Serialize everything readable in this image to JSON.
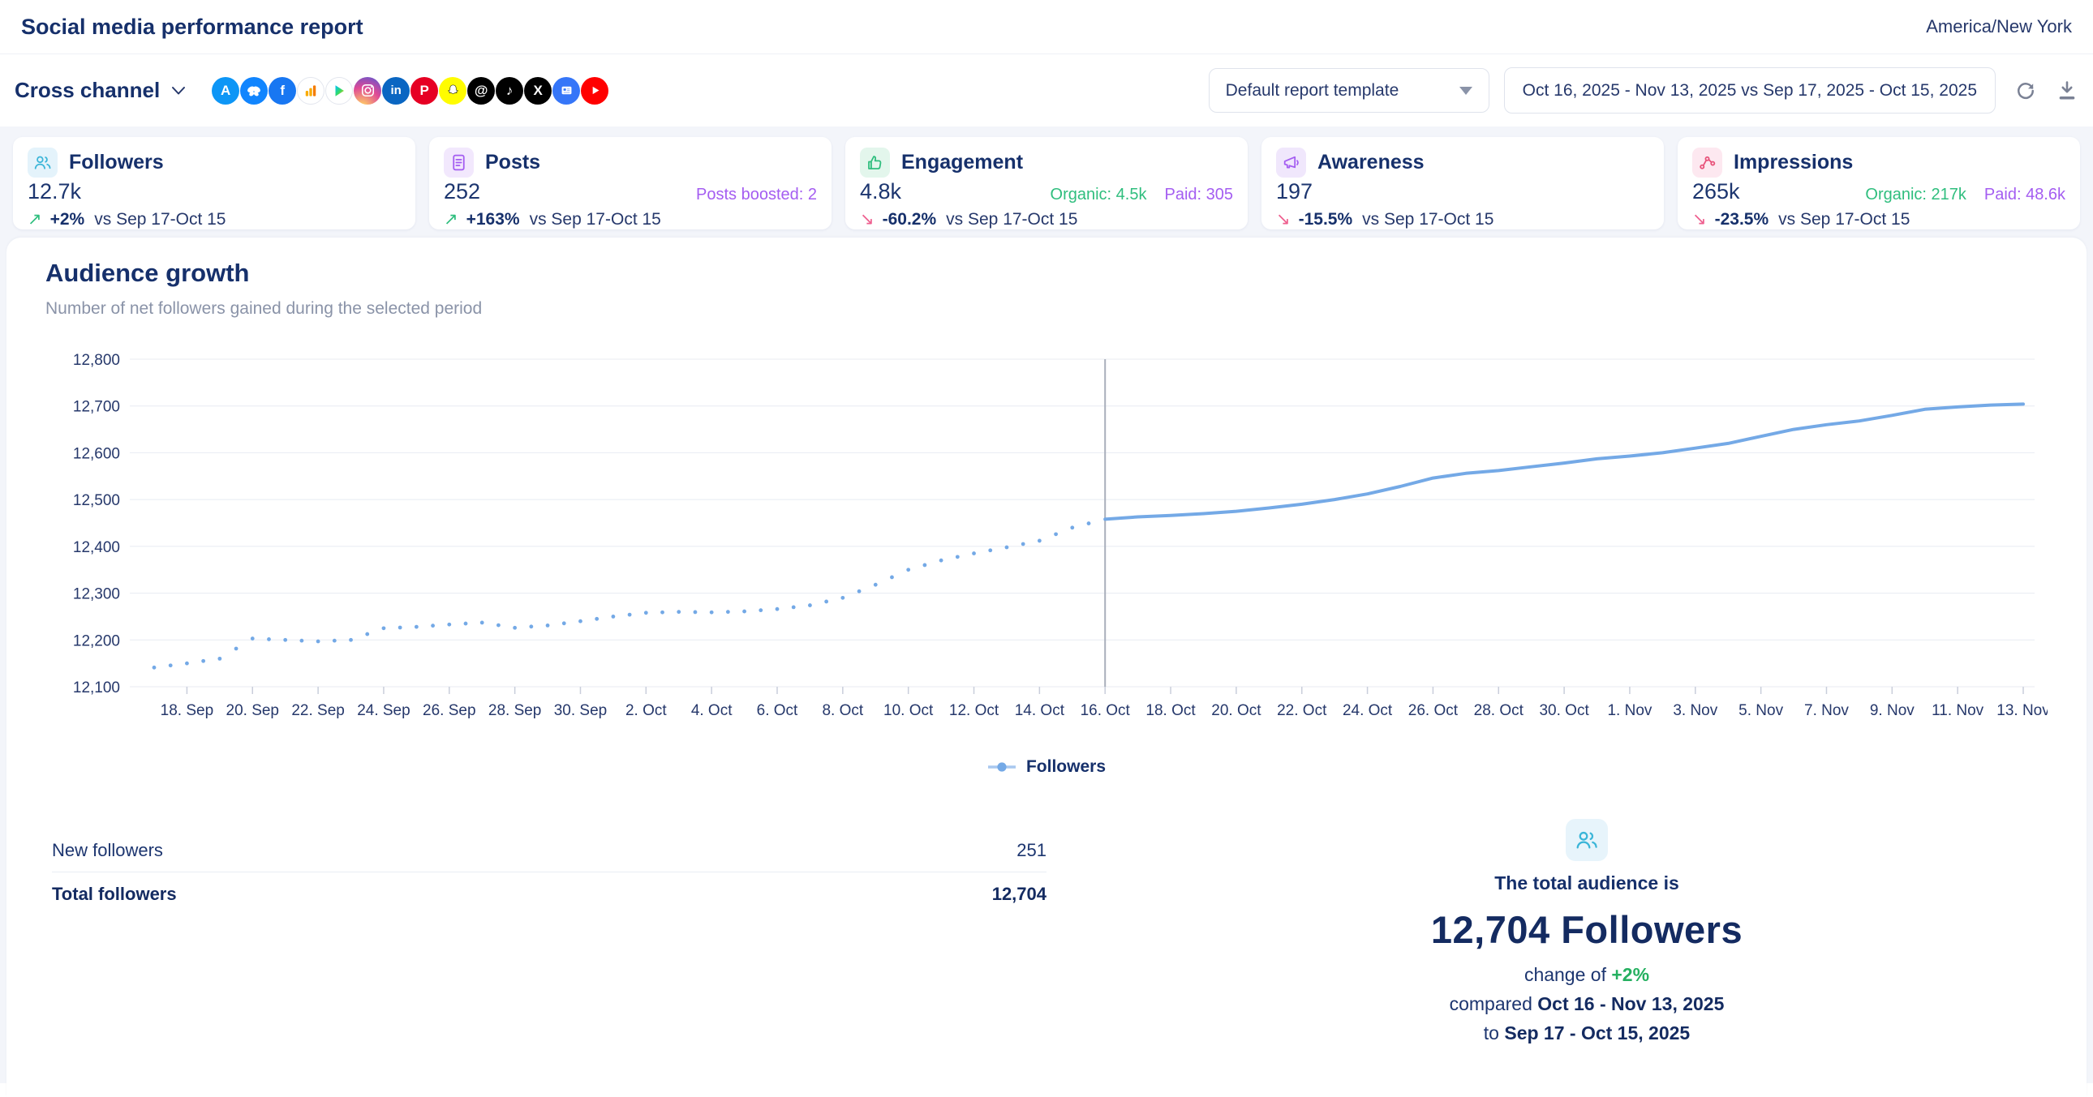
{
  "header": {
    "title": "Social media performance report",
    "timezone": "America/New York"
  },
  "toolbar": {
    "channel_label": "Cross channel",
    "template_selector_value": "Default report template",
    "date_range_value": "Oct 16, 2025 - Nov 13, 2025 vs Sep 17, 2025 - Oct 15, 2025",
    "social_channels": [
      {
        "name": "app-store",
        "type": "text",
        "glyph": "A",
        "bg": "#0d96f6",
        "fg": "#ffffff"
      },
      {
        "name": "bluesky",
        "type": "butterfly",
        "bg": "#1185fe"
      },
      {
        "name": "facebook",
        "type": "text",
        "glyph": "f",
        "bg": "#1877f2",
        "fg": "#ffffff"
      },
      {
        "name": "google-analytics",
        "type": "bars",
        "bg": "#ffffff",
        "bordered": true
      },
      {
        "name": "google-play",
        "type": "play-color",
        "bg": "#ffffff",
        "bordered": true
      },
      {
        "name": "instagram",
        "type": "camera",
        "bg": "gradient"
      },
      {
        "name": "linkedin",
        "type": "text",
        "glyph": "in",
        "bg": "#0a66c2",
        "fg": "#ffffff"
      },
      {
        "name": "pinterest",
        "type": "text",
        "glyph": "P",
        "bg": "#e60023",
        "fg": "#ffffff"
      },
      {
        "name": "snapchat",
        "type": "ghost",
        "bg": "#fffc00"
      },
      {
        "name": "threads",
        "type": "text",
        "glyph": "@",
        "bg": "#000000",
        "fg": "#ffffff"
      },
      {
        "name": "tiktok",
        "type": "text",
        "glyph": "♪",
        "bg": "#010101",
        "fg": "#ffffff"
      },
      {
        "name": "x",
        "type": "text",
        "glyph": "X",
        "bg": "#000000",
        "fg": "#ffffff"
      },
      {
        "name": "google-business",
        "type": "card",
        "bg": "#3676f8"
      },
      {
        "name": "youtube",
        "type": "play-white",
        "bg": "#ff0000"
      }
    ]
  },
  "cards": [
    {
      "id": "followers",
      "label": "Followers",
      "value": "12.7k",
      "trend": "+2%",
      "trend_dir": "up",
      "vs": "vs Sep 17-Oct 15",
      "icon": "followers-icon",
      "icon_bg": "#e4f3fb",
      "icon_color": "#3ab5d8",
      "notes": []
    },
    {
      "id": "posts",
      "label": "Posts",
      "value": "252",
      "trend": "+163%",
      "trend_dir": "up",
      "vs": "vs Sep 17-Oct 15",
      "icon": "posts-icon",
      "icon_bg": "#f2e8fd",
      "icon_color": "#a45df1",
      "notes": [
        {
          "text": "Posts boosted: 2",
          "color": "#a45df1"
        }
      ]
    },
    {
      "id": "engagement",
      "label": "Engagement",
      "value": "4.8k",
      "trend": "-60.2%",
      "trend_dir": "down",
      "vs": "vs Sep 17-Oct 15",
      "icon": "engagement-icon",
      "icon_bg": "#e3f6ec",
      "icon_color": "#2fbe7e",
      "notes": [
        {
          "text": "Organic: 4.5k",
          "color": "#2fbe7e"
        },
        {
          "text": "Paid: 305",
          "color": "#a45df1"
        }
      ]
    },
    {
      "id": "awareness",
      "label": "Awareness",
      "value": "197",
      "trend": "-15.5%",
      "trend_dir": "down",
      "vs": "vs Sep 17-Oct 15",
      "icon": "awareness-icon",
      "icon_bg": "#f0e7fc",
      "icon_color": "#a45df1",
      "notes": []
    },
    {
      "id": "impressions",
      "label": "Impressions",
      "value": "265k",
      "trend": "-23.5%",
      "trend_dir": "down",
      "vs": "vs Sep 17-Oct 15",
      "icon": "impressions-icon",
      "icon_bg": "#fde8f0",
      "icon_color": "#e8527a",
      "notes": [
        {
          "text": "Organic: 217k",
          "color": "#2fbe7e"
        },
        {
          "text": "Paid: 48.6k",
          "color": "#a45df1"
        }
      ]
    }
  ],
  "section": {
    "title": "Audience growth",
    "subtitle": "Number of net followers gained during the selected period"
  },
  "chart_data": {
    "type": "line",
    "title": "Audience growth",
    "ylabel": "Followers",
    "ylim": [
      12100,
      12800
    ],
    "ytick_step": 100,
    "grid": true,
    "legend_position": "bottom-center",
    "x_start_date": "Sep 17",
    "x_tick_labels": [
      "18. Sep",
      "20. Sep",
      "22. Sep",
      "24. Sep",
      "26. Sep",
      "28. Sep",
      "30. Sep",
      "2. Oct",
      "4. Oct",
      "6. Oct",
      "8. Oct",
      "10. Oct",
      "12. Oct",
      "14. Oct",
      "16. Oct",
      "18. Oct",
      "20. Oct",
      "22. Oct",
      "24. Oct",
      "26. Oct",
      "28. Oct",
      "30. Oct",
      "1. Nov",
      "3. Nov",
      "5. Nov",
      "7. Nov",
      "9. Nov",
      "11. Nov",
      "13. Nov"
    ],
    "x_tick_days": [
      1,
      3,
      5,
      7,
      9,
      11,
      13,
      15,
      17,
      19,
      21,
      23,
      25,
      27,
      29,
      31,
      33,
      35,
      37,
      39,
      41,
      43,
      45,
      47,
      49,
      51,
      53,
      55,
      57
    ],
    "divider_day": 29,
    "divider_label": "16. Oct",
    "series": [
      {
        "name": "Followers",
        "color": "#74a9e6",
        "dotted_until_day": 28,
        "values": [
          12141,
          12150,
          12160,
          12203,
          12200,
          12197,
          12200,
          12225,
          12228,
          12233,
          12237,
          12226,
          12231,
          12240,
          12250,
          12258,
          12260,
          12259,
          12261,
          12266,
          12274,
          12290,
          12318,
          12350,
          12370,
          12385,
          12398,
          12412,
          12440,
          12458,
          12463,
          12466,
          12470,
          12475,
          12482,
          12490,
          12500,
          12512,
          12528,
          12546,
          12556,
          12562,
          12570,
          12578,
          12587,
          12593,
          12600,
          12610,
          12620,
          12635,
          12650,
          12660,
          12668,
          12680,
          12693,
          12698,
          12702,
          12704
        ]
      }
    ],
    "legend": {
      "label": "Followers"
    }
  },
  "table": {
    "rows": [
      {
        "label": "New followers",
        "value": "251",
        "bold": false
      },
      {
        "label": "Total followers",
        "value": "12,704",
        "bold": true
      }
    ]
  },
  "summary": {
    "intro": "The total audience is",
    "headline": "12,704 Followers",
    "change_prefix": "change of ",
    "change_value": "+2%",
    "compared_prefix": "compared ",
    "compared_range": "Oct 16 - Nov 13, 2025",
    "to_prefix": "to ",
    "previous_range": "Sep 17 - Oct 15, 2025"
  },
  "colors": {
    "navy": "#16306b",
    "subtitle_gray": "#8a93a8",
    "chart_blue": "#74a9e6",
    "green": "#2fbe7e",
    "pink": "#ee5f8f",
    "purple": "#a45df1",
    "grid": "#e8ebf2",
    "divider": "#a9afbb"
  }
}
